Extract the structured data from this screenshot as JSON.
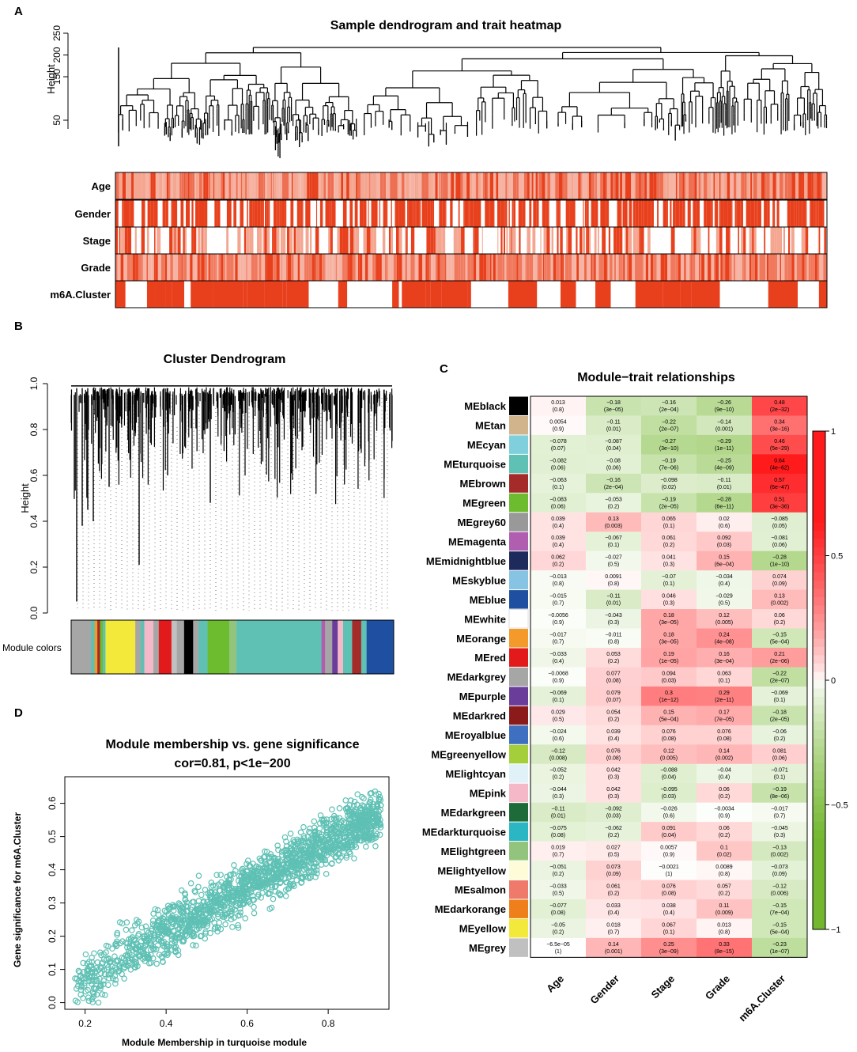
{
  "panels": {
    "a": "A",
    "b": "B",
    "c": "C",
    "d": "D"
  },
  "chart_data": [
    {
      "type": "dendrogram_heatmap",
      "title": "Sample dendrogram and trait heatmap",
      "ylabel": "Height",
      "yticks": [
        50,
        150,
        200,
        250
      ],
      "traits": [
        "Age",
        "Gender",
        "Stage",
        "Grade",
        "m6A.Cluster"
      ],
      "colors": {
        "high": "#e8401c",
        "mid": "#f6b3a3",
        "low": "#ffffff"
      }
    },
    {
      "type": "dendrogram",
      "title": "Cluster Dendrogram",
      "ylabel": "Height",
      "yticks": [
        "0.0",
        "0.2",
        "0.4",
        "0.6",
        "0.8",
        "1.0"
      ],
      "ylim": [
        0,
        1
      ],
      "colorbar_label": "Module colors"
    },
    {
      "type": "heatmap",
      "title": "Module−trait relationships",
      "columns": [
        "Age",
        "Gender",
        "Stage",
        "Grade",
        "m6A.Cluster"
      ],
      "colorbar": {
        "ticks": [
          "1",
          "0.5",
          "0",
          "−0.5",
          "−1"
        ],
        "high": "#e31a1c",
        "low": "#73b72e"
      },
      "rows": [
        {
          "name": "MEblack",
          "color": "#000000",
          "cells": [
            [
              "0.013",
              "(0.8)"
            ],
            [
              "−0.18",
              "(3e−05)"
            ],
            [
              "−0.16",
              "(2e−04)"
            ],
            [
              "−0.26",
              "(9e−10)"
            ],
            [
              "0.48",
              "(2e−32)"
            ]
          ]
        },
        {
          "name": "MEtan",
          "color": "#d2b48c",
          "cells": [
            [
              "0.0054",
              "(0.9)"
            ],
            [
              "−0.11",
              "(0.01)"
            ],
            [
              "−0.22",
              "(2e−07)"
            ],
            [
              "−0.14",
              "(0.001)"
            ],
            [
              "0.34",
              "(3e−16)"
            ]
          ]
        },
        {
          "name": "MEcyan",
          "color": "#7fd0dc",
          "cells": [
            [
              "−0.078",
              "(0.07)"
            ],
            [
              "−0.087",
              "(0.04)"
            ],
            [
              "−0.27",
              "(3e−10)"
            ],
            [
              "−0.29",
              "(1e−11)"
            ],
            [
              "0.46",
              "(5e−29)"
            ]
          ]
        },
        {
          "name": "MEturquoise",
          "color": "#5fc0b4",
          "cells": [
            [
              "−0.082",
              "(0.06)"
            ],
            [
              "−0.08",
              "(0.06)"
            ],
            [
              "−0.19",
              "(7e−06)"
            ],
            [
              "−0.25",
              "(4e−09)"
            ],
            [
              "0.64",
              "(4e−62)"
            ]
          ]
        },
        {
          "name": "MEbrown",
          "color": "#a52a2a",
          "cells": [
            [
              "−0.063",
              "(0.1)"
            ],
            [
              "−0.16",
              "(2e−04)"
            ],
            [
              "−0.098",
              "(0.02)"
            ],
            [
              "−0.11",
              "(0.01)"
            ],
            [
              "0.57",
              "(6e−47)"
            ]
          ]
        },
        {
          "name": "MEgreen",
          "color": "#6dbb2e",
          "cells": [
            [
              "−0.083",
              "(0.06)"
            ],
            [
              "−0.053",
              "(0.2)"
            ],
            [
              "−0.19",
              "(2e−05)"
            ],
            [
              "−0.28",
              "(6e−11)"
            ],
            [
              "0.51",
              "(3e−36)"
            ]
          ]
        },
        {
          "name": "MEgrey60",
          "color": "#999999",
          "cells": [
            [
              "0.039",
              "(0.4)"
            ],
            [
              "0.13",
              "(0.003)"
            ],
            [
              "0.065",
              "(0.1)"
            ],
            [
              "0.02",
              "(0.6)"
            ],
            [
              "−0.085",
              "(0.05)"
            ]
          ]
        },
        {
          "name": "MEmagenta",
          "color": "#b05fb0",
          "cells": [
            [
              "0.039",
              "(0.4)"
            ],
            [
              "−0.067",
              "(0.1)"
            ],
            [
              "0.061",
              "(0.2)"
            ],
            [
              "0.092",
              "(0.03)"
            ],
            [
              "−0.081",
              "(0.06)"
            ]
          ]
        },
        {
          "name": "MEmidnightblue",
          "color": "#1f2a5c",
          "cells": [
            [
              "0.062",
              "(0.2)"
            ],
            [
              "−0.027",
              "(0.5)"
            ],
            [
              "0.041",
              "(0.3)"
            ],
            [
              "0.15",
              "(6e−04)"
            ],
            [
              "−0.28",
              "(1e−10)"
            ]
          ]
        },
        {
          "name": "MEskyblue",
          "color": "#87c4e4",
          "cells": [
            [
              "−0.013",
              "(0.8)"
            ],
            [
              "0.0091",
              "(0.8)"
            ],
            [
              "−0.07",
              "(0.1)"
            ],
            [
              "−0.034",
              "(0.4)"
            ],
            [
              "0.074",
              "(0.09)"
            ]
          ]
        },
        {
          "name": "MEblue",
          "color": "#1f4fa0",
          "cells": [
            [
              "−0.015",
              "(0.7)"
            ],
            [
              "−0.11",
              "(0.01)"
            ],
            [
              "0.046",
              "(0.3)"
            ],
            [
              "−0.029",
              "(0.5)"
            ],
            [
              "0.13",
              "(0.002)"
            ]
          ]
        },
        {
          "name": "MEwhite",
          "color": "#ffffff",
          "cells": [
            [
              "−0.0056",
              "(0.9)"
            ],
            [
              "−0.043",
              "(0.3)"
            ],
            [
              "0.18",
              "(3e−05)"
            ],
            [
              "0.12",
              "(0.005)"
            ],
            [
              "0.06",
              "(0.2)"
            ]
          ]
        },
        {
          "name": "MEorange",
          "color": "#f39a2b",
          "cells": [
            [
              "−0.017",
              "(0.7)"
            ],
            [
              "−0.011",
              "(0.8)"
            ],
            [
              "0.18",
              "(3e−05)"
            ],
            [
              "0.24",
              "(4e−08)"
            ],
            [
              "−0.15",
              "(5e−04)"
            ]
          ]
        },
        {
          "name": "MEred",
          "color": "#e31a1c",
          "cells": [
            [
              "−0.033",
              "(0.4)"
            ],
            [
              "0.053",
              "(0.2)"
            ],
            [
              "0.19",
              "(1e−05)"
            ],
            [
              "0.16",
              "(3e−04)"
            ],
            [
              "0.21",
              "(2e−06)"
            ]
          ]
        },
        {
          "name": "MEdarkgrey",
          "color": "#a6a6a6",
          "cells": [
            [
              "−0.0068",
              "(0.9)"
            ],
            [
              "0.077",
              "(0.08)"
            ],
            [
              "0.094",
              "(0.03)"
            ],
            [
              "0.063",
              "(0.1)"
            ],
            [
              "−0.22",
              "(2e−07)"
            ]
          ]
        },
        {
          "name": "MEpurple",
          "color": "#6a3d9a",
          "cells": [
            [
              "−0.069",
              "(0.1)"
            ],
            [
              "0.079",
              "(0.07)"
            ],
            [
              "0.3",
              "(1e−12)"
            ],
            [
              "0.29",
              "(2e−11)"
            ],
            [
              "−0.069",
              "(0.1)"
            ]
          ]
        },
        {
          "name": "MEdarkred",
          "color": "#8b1a1a",
          "cells": [
            [
              "0.029",
              "(0.5)"
            ],
            [
              "0.054",
              "(0.2)"
            ],
            [
              "0.15",
              "(5e−04)"
            ],
            [
              "0.17",
              "(7e−05)"
            ],
            [
              "−0.18",
              "(2e−05)"
            ]
          ]
        },
        {
          "name": "MEroyalblue",
          "color": "#3f6fc0",
          "cells": [
            [
              "−0.024",
              "(0.6)"
            ],
            [
              "0.039",
              "(0.4)"
            ],
            [
              "0.076",
              "(0.08)"
            ],
            [
              "0.076",
              "(0.08)"
            ],
            [
              "−0.06",
              "(0.2)"
            ]
          ]
        },
        {
          "name": "MEgreenyellow",
          "color": "#a5cf3a",
          "cells": [
            [
              "−0.12",
              "(0.008)"
            ],
            [
              "0.076",
              "(0.08)"
            ],
            [
              "0.12",
              "(0.005)"
            ],
            [
              "0.14",
              "(0.002)"
            ],
            [
              "0.081",
              "(0.06)"
            ]
          ]
        },
        {
          "name": "MElightcyan",
          "color": "#e0f2f8",
          "cells": [
            [
              "−0.052",
              "(0.2)"
            ],
            [
              "0.042",
              "(0.3)"
            ],
            [
              "−0.088",
              "(0.04)"
            ],
            [
              "−0.04",
              "(0.4)"
            ],
            [
              "−0.071",
              "(0.1)"
            ]
          ]
        },
        {
          "name": "MEpink",
          "color": "#f4b8c8",
          "cells": [
            [
              "−0.044",
              "(0.3)"
            ],
            [
              "0.042",
              "(0.3)"
            ],
            [
              "−0.095",
              "(0.03)"
            ],
            [
              "0.06",
              "(0.2)"
            ],
            [
              "−0.19",
              "(8e−06)"
            ]
          ]
        },
        {
          "name": "MEdarkgreen",
          "color": "#1e6b3a",
          "cells": [
            [
              "−0.11",
              "(0.01)"
            ],
            [
              "−0.092",
              "(0.03)"
            ],
            [
              "−0.026",
              "(0.6)"
            ],
            [
              "−0.0034",
              "(0.9)"
            ],
            [
              "−0.017",
              "(0.7)"
            ]
          ]
        },
        {
          "name": "MEdarkturquoise",
          "color": "#2bb6c4",
          "cells": [
            [
              "−0.075",
              "(0.08)"
            ],
            [
              "−0.062",
              "(0.2)"
            ],
            [
              "0.091",
              "(0.04)"
            ],
            [
              "0.06",
              "(0.2)"
            ],
            [
              "−0.045",
              "(0.3)"
            ]
          ]
        },
        {
          "name": "MElightgreen",
          "color": "#93c47d",
          "cells": [
            [
              "0.019",
              "(0.7)"
            ],
            [
              "0.027",
              "(0.5)"
            ],
            [
              "0.0057",
              "(0.9)"
            ],
            [
              "0.1",
              "(0.02)"
            ],
            [
              "−0.13",
              "(0.002)"
            ]
          ]
        },
        {
          "name": "MElightyellow",
          "color": "#fdfbd8",
          "cells": [
            [
              "−0.051",
              "(0.2)"
            ],
            [
              "0.073",
              "(0.09)"
            ],
            [
              "−0.0021",
              "(1)"
            ],
            [
              "0.0089",
              "(0.8)"
            ],
            [
              "−0.073",
              "(0.09)"
            ]
          ]
        },
        {
          "name": "MEsalmon",
          "color": "#ef7a6c",
          "cells": [
            [
              "−0.033",
              "(0.5)"
            ],
            [
              "0.061",
              "(0.2)"
            ],
            [
              "0.076",
              "(0.08)"
            ],
            [
              "0.057",
              "(0.2)"
            ],
            [
              "−0.12",
              "(0.006)"
            ]
          ]
        },
        {
          "name": "MEdarkorange",
          "color": "#ef7f1a",
          "cells": [
            [
              "−0.077",
              "(0.08)"
            ],
            [
              "0.033",
              "(0.4)"
            ],
            [
              "0.038",
              "(0.4)"
            ],
            [
              "0.11",
              "(0.009)"
            ],
            [
              "−0.15",
              "(7e−04)"
            ]
          ]
        },
        {
          "name": "MEyellow",
          "color": "#f2e93a",
          "cells": [
            [
              "−0.05",
              "(0.2)"
            ],
            [
              "0.018",
              "(0.7)"
            ],
            [
              "0.067",
              "(0.1)"
            ],
            [
              "0.013",
              "(0.8)"
            ],
            [
              "−0.15",
              "(5e−04)"
            ]
          ]
        },
        {
          "name": "MEgrey",
          "color": "#c0c0c0",
          "cells": [
            [
              "−6.5e−05",
              "(1)"
            ],
            [
              "0.14",
              "(0.001)"
            ],
            [
              "0.25",
              "(3e−09)"
            ],
            [
              "0.33",
              "(8e−15)"
            ],
            [
              "−0.23",
              "(1e−07)"
            ]
          ]
        }
      ]
    },
    {
      "type": "scatter",
      "title": "Module membership vs. gene significance",
      "subtitle": "cor=0.81, p<1e−200",
      "xlabel": "Module Membership in turquoise module",
      "ylabel": "Gene significance for m6A.Cluster",
      "xticks": [
        "0.2",
        "0.4",
        "0.6",
        "0.8"
      ],
      "yticks": [
        "0.0",
        "0.1",
        "0.2",
        "0.3",
        "0.4",
        "0.5",
        "0.6"
      ],
      "xlim": [
        0.15,
        0.95
      ],
      "ylim": [
        -0.02,
        0.68
      ],
      "point_color": "#5fc0b4",
      "trend": {
        "x": [
          0.2,
          0.9
        ],
        "y": [
          0.08,
          0.55
        ]
      }
    }
  ]
}
